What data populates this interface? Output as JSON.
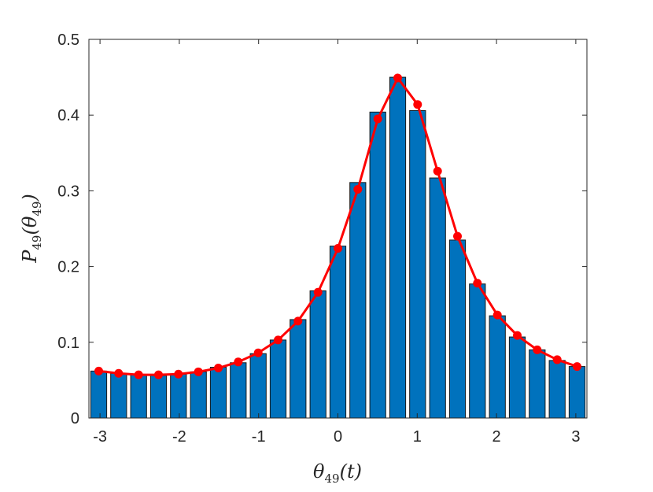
{
  "chart_data": {
    "type": "bar",
    "title": "",
    "xlabel": "θ49(t)",
    "ylabel": "P49(θ49)",
    "xlabel_parts": {
      "main": "θ",
      "sub": "49",
      "rest": "(t)"
    },
    "ylabel_parts": {
      "main": "P",
      "sub": "49",
      "mid": "(θ",
      "sub2": "49",
      "end": ")"
    },
    "xlim": [
      -3.14,
      3.14
    ],
    "ylim": [
      0,
      0.5
    ],
    "xticks": [
      -3,
      -2,
      -1,
      0,
      1,
      2,
      3
    ],
    "yticks": [
      0,
      0.1,
      0.2,
      0.3,
      0.4,
      0.5
    ],
    "xtick_labels": [
      "-3",
      "-2",
      "-1",
      "0",
      "1",
      "2",
      "3"
    ],
    "ytick_labels": [
      "0",
      "0.1",
      "0.2",
      "0.3",
      "0.4",
      "0.5"
    ],
    "grid": false,
    "colors": {
      "bar_fill": "#0072BD",
      "bar_edge": "#1a1a1a",
      "line": "#FF0000"
    },
    "x": [
      -3.016,
      -2.765,
      -2.513,
      -2.262,
      -2.011,
      -1.759,
      -1.508,
      -1.257,
      -1.005,
      -0.754,
      -0.503,
      -0.251,
      0.0,
      0.251,
      0.503,
      0.754,
      1.005,
      1.257,
      1.508,
      1.759,
      2.011,
      2.262,
      2.513,
      2.765,
      3.016
    ],
    "series": [
      {
        "type": "bar",
        "values": [
          0.062,
          0.059,
          0.057,
          0.056,
          0.058,
          0.061,
          0.067,
          0.073,
          0.085,
          0.103,
          0.13,
          0.168,
          0.227,
          0.311,
          0.404,
          0.45,
          0.406,
          0.317,
          0.235,
          0.177,
          0.135,
          0.107,
          0.09,
          0.076,
          0.068
        ]
      },
      {
        "type": "line",
        "values": [
          0.062,
          0.059,
          0.057,
          0.057,
          0.058,
          0.061,
          0.066,
          0.074,
          0.086,
          0.103,
          0.128,
          0.166,
          0.224,
          0.302,
          0.395,
          0.449,
          0.414,
          0.326,
          0.24,
          0.178,
          0.136,
          0.109,
          0.09,
          0.077,
          0.068
        ]
      }
    ]
  }
}
